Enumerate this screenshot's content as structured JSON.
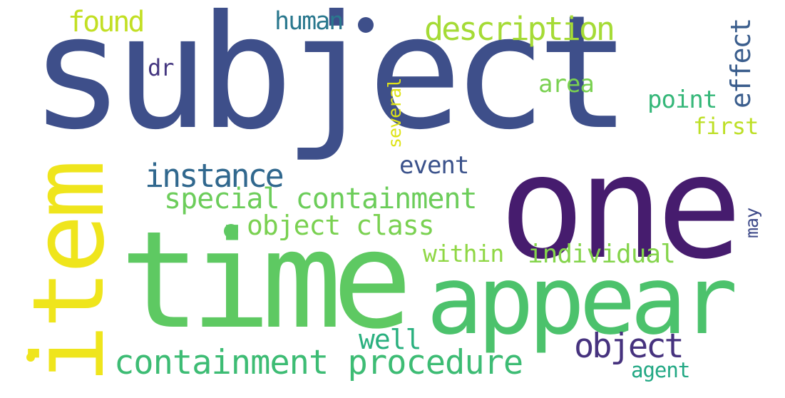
{
  "words": [
    {
      "text": "subject",
      "color": "#3e4f8a",
      "rotate": false
    },
    {
      "text": "one",
      "color": "#461c6e",
      "rotate": false
    },
    {
      "text": "time",
      "color": "#5ec962",
      "rotate": false
    },
    {
      "text": "appear",
      "color": "#4cc26c",
      "rotate": false
    },
    {
      "text": "item",
      "color": "#efe51c",
      "rotate": true
    },
    {
      "text": "containment procedure",
      "color": "#3dbc74",
      "rotate": false
    },
    {
      "text": "special containment",
      "color": "#6ccd5a",
      "rotate": false
    },
    {
      "text": "object class",
      "color": "#7ad151",
      "rotate": false
    },
    {
      "text": "instance",
      "color": "#31688e",
      "rotate": false
    },
    {
      "text": "description",
      "color": "#a5db36",
      "rotate": false
    },
    {
      "text": "found",
      "color": "#c2df23",
      "rotate": false
    },
    {
      "text": "human",
      "color": "#2a788e",
      "rotate": false
    },
    {
      "text": "object",
      "color": "#46327e",
      "rotate": false
    },
    {
      "text": "individual",
      "color": "#84d44b",
      "rotate": false
    },
    {
      "text": "within",
      "color": "#8fd744",
      "rotate": false
    },
    {
      "text": "well",
      "color": "#2ab07f",
      "rotate": false
    },
    {
      "text": "event",
      "color": "#3b528b",
      "rotate": false
    },
    {
      "text": "area",
      "color": "#7ad151",
      "rotate": false
    },
    {
      "text": "point",
      "color": "#35b779",
      "rotate": false
    },
    {
      "text": "first",
      "color": "#bddf26",
      "rotate": false
    },
    {
      "text": "effect",
      "color": "#3b5e8d",
      "rotate": true
    },
    {
      "text": "several",
      "color": "#dfe318",
      "rotate": true
    },
    {
      "text": "may",
      "color": "#3e4a89",
      "rotate": true
    },
    {
      "text": "agent",
      "color": "#22a884",
      "rotate": false
    },
    {
      "text": "dr",
      "color": "#453781",
      "rotate": false
    }
  ],
  "dots": [
    {
      "name": "navy-dot",
      "color": "#3e4f8a"
    },
    {
      "name": "green-dot",
      "color": "#5ec962"
    },
    {
      "name": "yellow-dot",
      "color": "#efe51c"
    }
  ]
}
